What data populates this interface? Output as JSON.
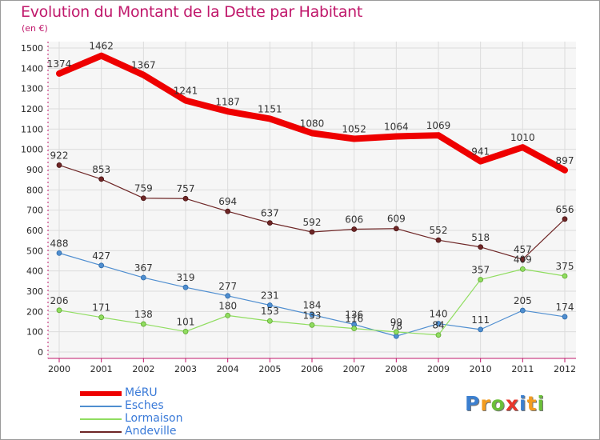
{
  "chart_data": {
    "type": "line",
    "title": "Evolution du Montant de la Dette par Habitant",
    "subtitle": "(en €)",
    "x": [
      "2000",
      "2001",
      "2002",
      "2003",
      "2004",
      "2005",
      "2006",
      "2007",
      "2008",
      "2009",
      "2010",
      "2011",
      "2012"
    ],
    "ylim": [
      0,
      1500
    ],
    "yticks": [
      0,
      100,
      200,
      300,
      400,
      500,
      600,
      700,
      800,
      900,
      1000,
      1100,
      1200,
      1300,
      1400,
      1500
    ],
    "grid": true,
    "legend_position": "bottom-left",
    "series": [
      {
        "name": "MéRU",
        "color": "#ee0000",
        "values": [
          1374,
          1462,
          1367,
          1241,
          1187,
          1151,
          1080,
          1052,
          1064,
          1069,
          941,
          1010,
          897
        ]
      },
      {
        "name": "Esches",
        "color": "#4f8ed0",
        "values": [
          488,
          427,
          367,
          319,
          277,
          231,
          184,
          136,
          78,
          140,
          111,
          205,
          174
        ]
      },
      {
        "name": "Lormaison",
        "color": "#90dd60",
        "values": [
          206,
          171,
          138,
          101,
          180,
          153,
          133,
          116,
          99,
          84,
          357,
          409,
          375
        ]
      },
      {
        "name": "Andeville",
        "color": "#6e2626",
        "values": [
          922,
          853,
          759,
          757,
          694,
          637,
          592,
          606,
          609,
          552,
          518,
          457,
          656
        ]
      }
    ]
  },
  "logo": {
    "text": "Proxiti",
    "letters": [
      {
        "ch": "P",
        "color": "#3b7fcf"
      },
      {
        "ch": "r",
        "color": "#f39c1f"
      },
      {
        "ch": "o",
        "color": "#6bbf3a"
      },
      {
        "ch": "x",
        "color": "#e8372c"
      },
      {
        "ch": "i",
        "color": "#3b7fcf"
      },
      {
        "ch": "t",
        "color": "#f39c1f"
      },
      {
        "ch": "i",
        "color": "#6bbf3a"
      }
    ]
  }
}
